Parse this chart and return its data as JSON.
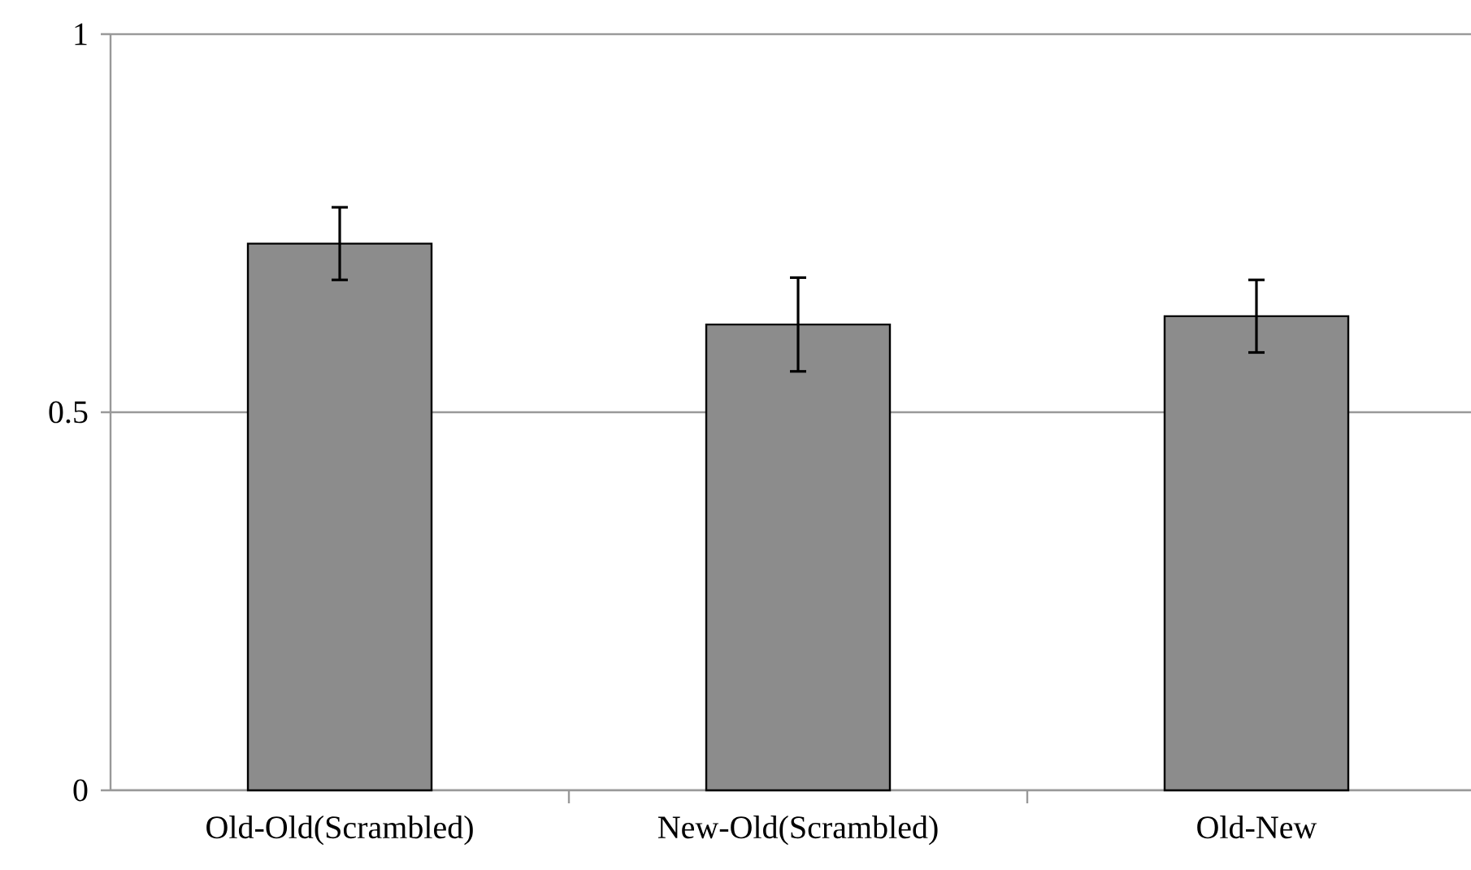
{
  "chart_data": {
    "type": "bar",
    "categories": [
      "Old-Old(Scrambled)",
      "New-Old(Scrambled)",
      "Old-New"
    ],
    "values": [
      0.723,
      0.616,
      0.627
    ],
    "errors": [
      0.048,
      0.062,
      0.048
    ],
    "color": "#8c8c8c",
    "ylim": [
      0,
      1
    ],
    "yticks": [
      0,
      0.5,
      1
    ],
    "grid": "y"
  }
}
